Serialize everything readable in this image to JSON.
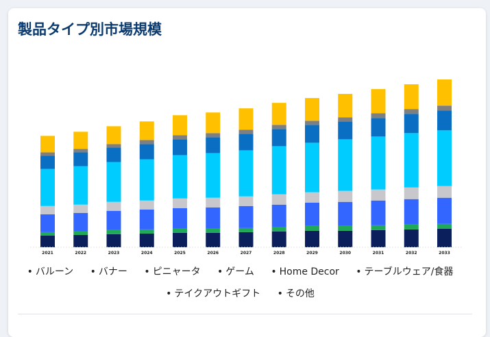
{
  "title": "製品タイプ別市場規模",
  "legend": {
    "items": [
      "バルーン",
      "バナー",
      "ピニャータ",
      "ゲーム",
      "Home Decor",
      "テーブルウェア/食器",
      "テイクアウトギフト",
      "その他"
    ]
  },
  "chart_data": {
    "type": "bar",
    "stacked": true,
    "title": "製品タイプ別市場規模",
    "xlabel": "",
    "ylabel": "",
    "grid": false,
    "legend_position": "bottom",
    "categories": [
      "2021",
      "2022",
      "2023",
      "2024",
      "2025",
      "2026",
      "2027",
      "2028",
      "2029",
      "2030",
      "2031",
      "2032",
      "2033"
    ],
    "series": [
      {
        "name": "バルーン",
        "color": "#0b1f5c",
        "values": [
          17,
          18,
          19,
          20,
          21,
          21,
          22,
          23,
          24,
          24,
          25,
          26,
          27
        ]
      },
      {
        "name": "バナー",
        "color": "#1faa59",
        "values": [
          5,
          5,
          6,
          6,
          6,
          6,
          6,
          6,
          7,
          7,
          7,
          7,
          7
        ]
      },
      {
        "name": "ピニャータ",
        "color": "#3366ff",
        "values": [
          26,
          27,
          28,
          29,
          30,
          31,
          32,
          33,
          34,
          35,
          36,
          37,
          38
        ]
      },
      {
        "name": "ゲーム",
        "color": "#c8c8cc",
        "values": [
          12,
          12,
          13,
          13,
          14,
          14,
          14,
          15,
          15,
          16,
          16,
          17,
          17
        ]
      },
      {
        "name": "Home Decor",
        "color": "#00ccff",
        "values": [
          54,
          56,
          58,
          60,
          63,
          65,
          67,
          70,
          72,
          75,
          77,
          79,
          81
        ]
      },
      {
        "name": "テーブルウェア/食器",
        "color": "#0a6fc2",
        "values": [
          19,
          20,
          21,
          22,
          23,
          23,
          24,
          25,
          26,
          26,
          27,
          28,
          29
        ]
      },
      {
        "name": "テイクアウトギフト",
        "color": "#7f7f7f",
        "values": [
          5,
          5,
          5,
          6,
          6,
          6,
          6,
          6,
          6,
          6,
          7,
          7,
          7
        ]
      },
      {
        "name": "その他",
        "color": "#ffc000",
        "values": [
          24,
          25,
          26,
          27,
          29,
          30,
          31,
          32,
          33,
          34,
          35,
          36,
          38
        ]
      }
    ],
    "ylim": [
      0,
      250
    ]
  }
}
